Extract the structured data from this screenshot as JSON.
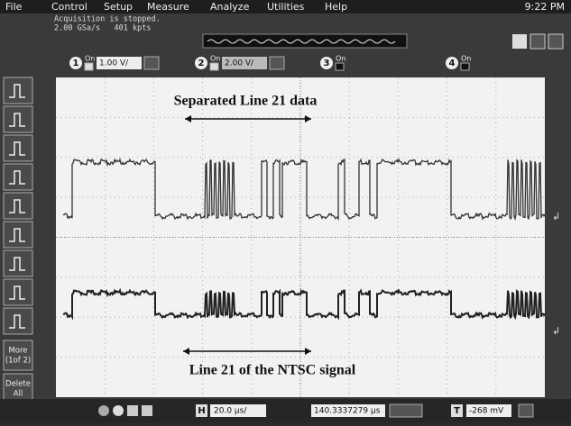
{
  "menu": [
    "File",
    "Control",
    "Setup",
    "Measure",
    "Analyze",
    "Utilities",
    "Help"
  ],
  "clock": "9:22 PM",
  "status": {
    "line1": "Acquisition is stopped.",
    "line2": "2.00 GSa/s   401 kpts"
  },
  "channels": [
    {
      "number": "1",
      "state": "On",
      "scale": "1.00 V/"
    },
    {
      "number": "2",
      "state": "On",
      "scale": "2.00 V/"
    },
    {
      "number": "3",
      "state": "On"
    },
    {
      "number": "4",
      "state": "On"
    }
  ],
  "side_buttons": [
    {
      "top": "More",
      "bottom": "(1of 2)"
    },
    {
      "top": "Delete",
      "bottom": "All"
    }
  ],
  "annotations": {
    "top": "Separated Line 21 data",
    "bottom": "Line 21 of the NTSC signal"
  },
  "bottom_bar": {
    "horizontal_label": "H",
    "horizontal_scale": "20.0 µs/",
    "delay": "140.3337279 µs",
    "trigger_label": "T",
    "trigger_level": "-268 mV"
  }
}
